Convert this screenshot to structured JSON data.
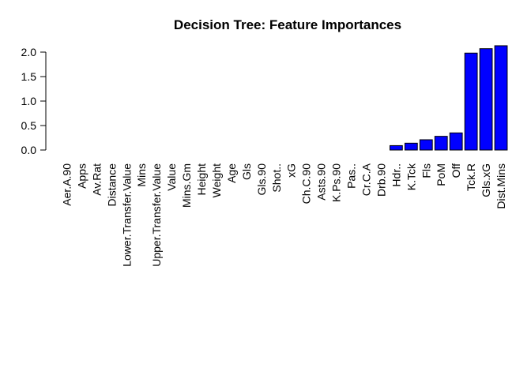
{
  "chart_data": {
    "type": "bar",
    "title": "Decision Tree: Feature Importances",
    "xlabel": "",
    "ylabel": "",
    "categories": [
      "Aer.A.90",
      "Apps",
      "Av.Rat",
      "Distance",
      "Lower.Transfer.Value",
      "Mins",
      "Upper.Transfer.Value",
      "Value",
      "Mins.Gm",
      "Height",
      "Weight",
      "Age",
      "Gls",
      "Gls.90",
      "Shot..",
      "xG",
      "Ch.C.90",
      "Asts.90",
      "K.Ps.90",
      "Pas..",
      "Cr.C.A",
      "Drb.90",
      "Hdr..",
      "K.Tck",
      "Fls",
      "PoM",
      "Off",
      "Tck.R",
      "Gls.xG",
      "Dist.Mins"
    ],
    "values": [
      0,
      0,
      0,
      0,
      0,
      0,
      0,
      0,
      0,
      0,
      0,
      0,
      0,
      0,
      0,
      0,
      0,
      0,
      0,
      0,
      0,
      0,
      0.09,
      0.14,
      0.21,
      0.28,
      0.35,
      1.98,
      2.07,
      2.13
    ],
    "yticks": [
      "0.0",
      "0.5",
      "1.0",
      "1.5",
      "2.0"
    ],
    "ylim": [
      0,
      2.13
    ],
    "bar_color": "#0000ff",
    "grid": false,
    "legend": "none"
  }
}
